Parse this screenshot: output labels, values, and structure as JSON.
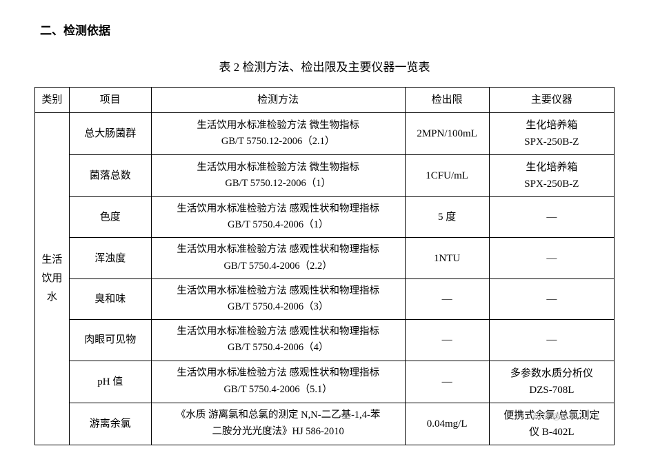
{
  "section": {
    "heading": "二、检测依据"
  },
  "table": {
    "title": "表 2 检测方法、检出限及主要仪器一览表",
    "headers": {
      "category": "类别",
      "item": "项目",
      "method": "检测方法",
      "limit": "检出限",
      "instrument": "主要仪器"
    },
    "category_label": "生活饮用水",
    "rows": [
      {
        "item": "总大肠菌群",
        "method_line1": "生活饮用水标准检验方法 微生物指标",
        "method_line2": "GB/T 5750.12-2006（2.1）",
        "limit": "2MPN/100mL",
        "instrument_line1": "生化培养箱",
        "instrument_line2": "SPX-250B-Z"
      },
      {
        "item": "菌落总数",
        "method_line1": "生活饮用水标准检验方法 微生物指标",
        "method_line2": "GB/T 5750.12-2006（1）",
        "limit": "1CFU/mL",
        "instrument_line1": "生化培养箱",
        "instrument_line2": "SPX-250B-Z"
      },
      {
        "item": "色度",
        "method_line1": "生活饮用水标准检验方法 感观性状和物理指标",
        "method_line2": "GB/T 5750.4-2006（1）",
        "limit": "5 度",
        "instrument_line1": "—",
        "instrument_line2": ""
      },
      {
        "item": "浑浊度",
        "method_line1": "生活饮用水标准检验方法 感观性状和物理指标",
        "method_line2": "GB/T 5750.4-2006（2.2）",
        "limit": "1NTU",
        "instrument_line1": "—",
        "instrument_line2": ""
      },
      {
        "item": "臭和味",
        "method_line1": "生活饮用水标准检验方法 感观性状和物理指标",
        "method_line2": "GB/T 5750.4-2006（3）",
        "limit": "—",
        "instrument_line1": "—",
        "instrument_line2": ""
      },
      {
        "item": "肉眼可见物",
        "method_line1": "生活饮用水标准检验方法 感观性状和物理指标",
        "method_line2": "GB/T 5750.4-2006（4）",
        "limit": "—",
        "instrument_line1": "—",
        "instrument_line2": ""
      },
      {
        "item": "pH 值",
        "method_line1": "生活饮用水标准检验方法 感观性状和物理指标",
        "method_line2": "GB/T 5750.4-2006（5.1）",
        "limit": "—",
        "instrument_line1": "多参数水质分析仪",
        "instrument_line2": "DZS-708L"
      },
      {
        "item": "游离余氯",
        "method_line1": "《水质 游离氯和总氯的测定 N,N-二乙基-1,4-苯",
        "method_line2": "二胺分光光度法》HJ 586-2010",
        "limit": "0.04mg/L",
        "instrument_line1": "便携式余氯/总氯测定",
        "instrument_line2": "仪 B-402L"
      }
    ]
  },
  "watermark": "知乎 @H.x"
}
